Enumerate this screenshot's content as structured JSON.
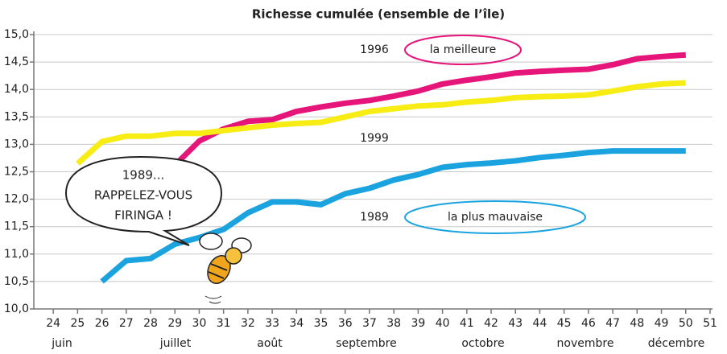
{
  "chart_data": {
    "type": "line",
    "title": "Richesse cumulée (ensemble de l’île)",
    "x": [
      24,
      25,
      26,
      27,
      28,
      29,
      30,
      31,
      32,
      33,
      34,
      35,
      36,
      37,
      38,
      39,
      40,
      41,
      42,
      43,
      44,
      45,
      46,
      47,
      48,
      49,
      50
    ],
    "xlim": [
      23.2,
      51.1
    ],
    "xticks": [
      24,
      25,
      26,
      27,
      28,
      29,
      30,
      31,
      32,
      33,
      34,
      35,
      36,
      37,
      38,
      39,
      40,
      41,
      42,
      43,
      44,
      45,
      46,
      47,
      48,
      49,
      50,
      51
    ],
    "months": [
      "juin",
      "juillet",
      "août",
      "septembre",
      "octobre",
      "novembre",
      "décembre"
    ],
    "ylim": [
      10,
      15
    ],
    "yticks": [
      {
        "value": 10,
        "label": "10,0"
      },
      {
        "value": 10.5,
        "label": "10,5"
      },
      {
        "value": 11,
        "label": "11,0"
      },
      {
        "value": 11.5,
        "label": "11,5"
      },
      {
        "value": 12,
        "label": "12,0"
      },
      {
        "value": 12.5,
        "label": "12,5"
      },
      {
        "value": 13,
        "label": "13,0"
      },
      {
        "value": 13.5,
        "label": "13,5"
      },
      {
        "value": 14,
        "label": "14,0"
      },
      {
        "value": 14.5,
        "label": "14,5"
      },
      {
        "value": 15,
        "label": "15,0"
      }
    ],
    "grid": true,
    "series": [
      {
        "name": "1996",
        "color": "#e5157a",
        "values": [
          null,
          null,
          null,
          null,
          null,
          12.62,
          13.06,
          13.28,
          13.42,
          13.45,
          13.6,
          13.68,
          13.75,
          13.8,
          13.88,
          13.97,
          14.1,
          14.17,
          14.23,
          14.3,
          14.33,
          14.35,
          14.37,
          14.45,
          14.56,
          14.6,
          14.63
        ]
      },
      {
        "name": "1999",
        "color": "#f7ec13",
        "values": [
          null,
          12.65,
          13.05,
          13.15,
          13.15,
          13.2,
          13.2,
          13.25,
          13.3,
          13.35,
          13.38,
          13.4,
          13.5,
          13.6,
          13.65,
          13.7,
          13.72,
          13.77,
          13.8,
          13.85,
          13.87,
          13.88,
          13.9,
          13.97,
          14.05,
          14.1,
          14.12
        ]
      },
      {
        "name": "1989",
        "color": "#1ba3e0",
        "values": [
          null,
          null,
          10.5,
          10.88,
          10.92,
          11.18,
          11.3,
          11.45,
          11.75,
          11.95,
          11.95,
          11.9,
          12.1,
          12.2,
          12.35,
          12.45,
          12.58,
          12.63,
          12.66,
          12.7,
          12.76,
          12.8,
          12.85,
          12.88,
          12.88,
          12.88,
          12.88
        ]
      }
    ],
    "annotations": [
      "la meilleure",
      "la plus mauvaise"
    ],
    "bubble": [
      "1989...",
      "RAPPELEZ-VOUS",
      "FIRINGA !"
    ]
  }
}
